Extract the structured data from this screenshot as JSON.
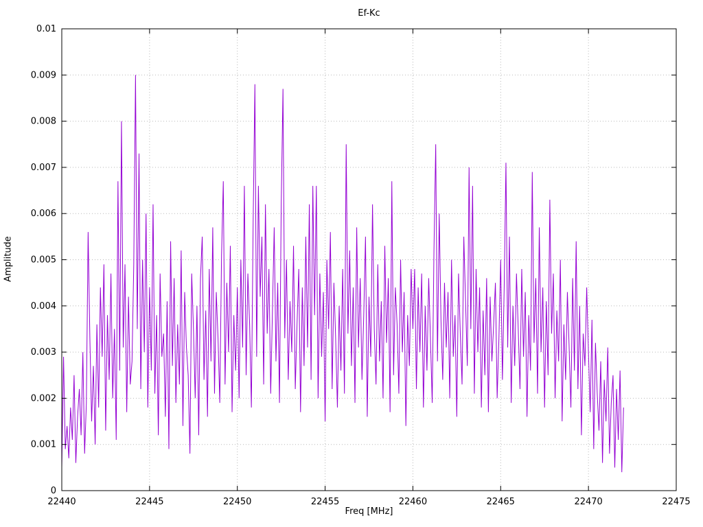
{
  "chart_data": {
    "type": "line",
    "title": "Ef-Kc",
    "xlabel": "Freq [MHz]",
    "ylabel": "Amplitude",
    "xlim": [
      22440,
      22475
    ],
    "ylim": [
      0,
      0.01
    ],
    "x_ticks": [
      22440,
      22445,
      22450,
      22455,
      22460,
      22465,
      22470,
      22475
    ],
    "y_tick_values": [
      0,
      0.001,
      0.002,
      0.003,
      0.004,
      0.005,
      0.006,
      0.007,
      0.008,
      0.009,
      0.01
    ],
    "y_tick_labels": [
      "0",
      "0.001",
      "0.002",
      "0.003",
      "0.004",
      "0.005",
      "0.006",
      "0.007",
      "0.008",
      "0.009",
      "0.01"
    ],
    "grid": "dotted",
    "legend": "none",
    "line_color": "#9400d3",
    "grid_color": "#b8b8b8",
    "border_color": "#000000",
    "series": [
      {
        "name": "Ef-Kc",
        "x_start": 22440.0,
        "x_step": 0.1,
        "y_scale": 0.0001,
        "y_units": [
          5,
          29,
          9,
          14,
          7,
          18,
          11,
          25,
          6,
          16,
          22,
          12,
          30,
          8,
          19,
          56,
          33,
          15,
          27,
          10,
          36,
          18,
          44,
          29,
          49,
          13,
          38,
          24,
          47,
          20,
          35,
          11,
          67,
          26,
          80,
          31,
          49,
          17,
          42,
          23,
          28,
          49,
          90,
          35,
          73,
          22,
          50,
          30,
          60,
          18,
          44,
          26,
          62,
          21,
          38,
          12,
          47,
          29,
          34,
          16,
          41,
          9,
          54,
          27,
          46,
          19,
          36,
          23,
          52,
          14,
          43,
          31,
          25,
          8,
          47,
          35,
          20,
          40,
          12,
          46,
          55,
          24,
          39,
          16,
          48,
          28,
          57,
          21,
          43,
          33,
          19,
          51,
          67,
          23,
          45,
          30,
          53,
          17,
          38,
          26,
          44,
          20,
          50,
          31,
          66,
          25,
          47,
          36,
          18,
          58,
          88,
          29,
          66,
          42,
          55,
          23,
          62,
          34,
          48,
          21,
          39,
          57,
          28,
          45,
          19,
          62,
          87,
          33,
          50,
          24,
          41,
          30,
          53,
          22,
          36,
          48,
          17,
          44,
          27,
          55,
          31,
          62,
          24,
          66,
          38,
          66,
          20,
          47,
          29,
          43,
          15,
          50,
          35,
          56,
          22,
          45,
          33,
          18,
          40,
          26,
          48,
          21,
          75,
          34,
          52,
          27,
          44,
          19,
          57,
          31,
          46,
          24,
          38,
          55,
          16,
          42,
          29,
          62,
          35,
          23,
          49,
          28,
          41,
          20,
          53,
          32,
          46,
          17,
          67,
          25,
          44,
          36,
          21,
          50,
          30,
          43,
          14,
          38,
          27,
          48,
          35,
          48,
          22,
          44,
          30,
          47,
          18,
          40,
          26,
          46,
          33,
          19,
          52,
          75,
          28,
          60,
          37,
          24,
          45,
          31,
          43,
          20,
          50,
          29,
          38,
          16,
          47,
          34,
          23,
          55,
          41,
          27,
          70,
          35,
          66,
          21,
          48,
          30,
          44,
          18,
          39,
          25,
          46,
          17,
          42,
          28,
          36,
          45,
          20,
          33,
          50,
          24,
          44,
          71,
          31,
          55,
          19,
          40,
          27,
          47,
          35,
          22,
          48,
          29,
          43,
          16,
          38,
          26,
          69,
          32,
          46,
          21,
          57,
          30,
          44,
          18,
          41,
          25,
          63,
          34,
          47,
          20,
          39,
          28,
          50,
          15,
          36,
          24,
          43,
          31,
          18,
          46,
          26,
          54,
          22,
          40,
          12,
          34,
          27,
          44,
          30,
          17,
          37,
          9,
          32,
          21,
          13,
          28,
          6,
          24,
          15,
          31,
          8,
          19,
          25,
          5,
          22,
          11,
          26,
          4,
          18
        ]
      }
    ],
    "notable_peaks": [
      {
        "x": 22444.2,
        "y": 0.009
      },
      {
        "x": 22451.0,
        "y": 0.0088
      },
      {
        "x": 22452.6,
        "y": 0.0087
      },
      {
        "x": 22443.4,
        "y": 0.008
      },
      {
        "x": 22456.2,
        "y": 0.0075
      },
      {
        "x": 22461.3,
        "y": 0.0075
      },
      {
        "x": 22465.3,
        "y": 0.0071
      }
    ]
  }
}
